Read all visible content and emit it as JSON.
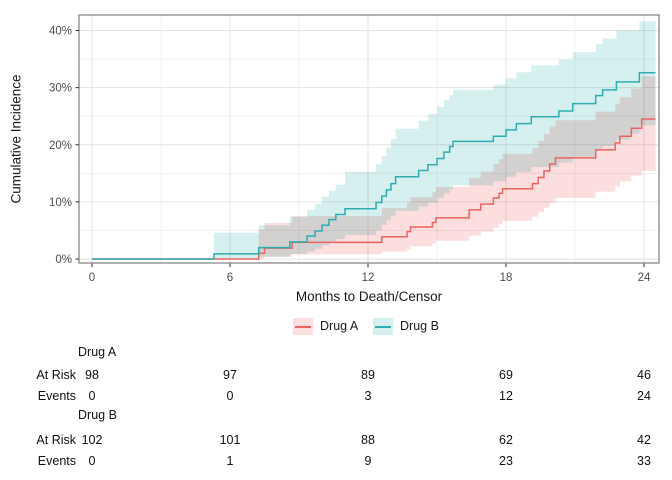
{
  "chart_data": {
    "type": "line",
    "subtype": "step-cumulative-incidence-with-confidence-bands",
    "title": "",
    "xlabel": "Months to Death/Censor",
    "ylabel": "Cumulative Incidence",
    "xlim": [
      -0.6,
      24.7
    ],
    "ylim": [
      -0.7,
      42.7
    ],
    "x_ticks": [
      0,
      6,
      12,
      18,
      24
    ],
    "x_tick_labels": [
      "0",
      "6",
      "12",
      "18",
      "24"
    ],
    "x_minor_ticks": [
      3,
      9,
      15,
      21
    ],
    "y_ticks": [
      0,
      10,
      20,
      30,
      40
    ],
    "y_tick_labels": [
      "0%",
      "10%",
      "20%",
      "30%",
      "40%"
    ],
    "y_minor_ticks": [
      5,
      15,
      25,
      35
    ],
    "grid": true,
    "legend_position": "bottom",
    "end_month": 24.5,
    "panel_border_color": "#7f7f7f",
    "grid_major_color": "#e3e3e3",
    "grid_minor_color": "#f1f1f1",
    "tick_text_color": "#4d4d4d",
    "series": [
      {
        "name": "Drug A",
        "color": "#EB6462",
        "band_color": "#FBDEDD",
        "steps_format": [
          "month",
          "cum_incidence_pct",
          "ci_lower_pct",
          "ci_upper_pct"
        ],
        "steps": [
          [
            0,
            0,
            0,
            0
          ],
          [
            7.25,
            1.0,
            0.1,
            5.2
          ],
          [
            7.5,
            1.9,
            0.4,
            6.3
          ],
          [
            8.7,
            2.9,
            0.8,
            7.5
          ],
          [
            12.6,
            3.9,
            1.3,
            8.9
          ],
          [
            13.7,
            4.8,
            1.7,
            9.9
          ],
          [
            13.85,
            5.6,
            2.2,
            10.8
          ],
          [
            14.8,
            6.4,
            2.7,
            11.7
          ],
          [
            14.95,
            7.2,
            3.2,
            12.6
          ],
          [
            16.4,
            8.6,
            4.1,
            14.2
          ],
          [
            16.9,
            9.6,
            4.8,
            15.3
          ],
          [
            17.45,
            10.7,
            5.5,
            16.6
          ],
          [
            17.7,
            11.5,
            6.1,
            17.5
          ],
          [
            17.85,
            12.3,
            6.7,
            18.4
          ],
          [
            19.15,
            13.2,
            7.4,
            19.4
          ],
          [
            19.4,
            14.3,
            8.2,
            20.7
          ],
          [
            19.65,
            15.4,
            9.0,
            21.9
          ],
          [
            19.9,
            16.6,
            9.9,
            23.2
          ],
          [
            20.15,
            17.7,
            10.7,
            24.3
          ],
          [
            21.9,
            19.1,
            11.8,
            25.8
          ],
          [
            22.75,
            20.3,
            12.7,
            27.1
          ],
          [
            22.95,
            21.5,
            13.6,
            28.3
          ],
          [
            23.45,
            22.9,
            14.6,
            29.8
          ],
          [
            23.9,
            24.5,
            15.4,
            32.0
          ]
        ]
      },
      {
        "name": "Drug B",
        "color": "#2DADB1",
        "band_color": "#D6F0F0",
        "steps_format": [
          "month",
          "cum_incidence_pct",
          "ci_lower_pct",
          "ci_upper_pct"
        ],
        "steps": [
          [
            0,
            0,
            0,
            0
          ],
          [
            5.3,
            0.9,
            0.1,
            4.6
          ],
          [
            7.25,
            2.0,
            0.4,
            5.9
          ],
          [
            8.6,
            3.0,
            0.9,
            7.4
          ],
          [
            9.35,
            4.0,
            1.3,
            8.6
          ],
          [
            9.7,
            4.9,
            1.8,
            9.7
          ],
          [
            10.0,
            5.9,
            2.4,
            10.9
          ],
          [
            10.3,
            6.9,
            3.0,
            12.0
          ],
          [
            10.6,
            7.8,
            3.5,
            13.0
          ],
          [
            11.0,
            8.8,
            4.2,
            15.3
          ],
          [
            12.35,
            9.9,
            5.0,
            16.6
          ],
          [
            12.6,
            11.0,
            6.0,
            18.0
          ],
          [
            12.8,
            12.1,
            6.8,
            19.5
          ],
          [
            13.0,
            13.2,
            7.6,
            21.0
          ],
          [
            13.2,
            14.4,
            8.4,
            22.8
          ],
          [
            14.2,
            15.5,
            9.2,
            24.2
          ],
          [
            14.6,
            16.5,
            9.9,
            25.4
          ],
          [
            15.0,
            17.6,
            10.7,
            26.6
          ],
          [
            15.3,
            18.7,
            11.5,
            27.8
          ],
          [
            15.55,
            19.7,
            12.2,
            28.7
          ],
          [
            15.7,
            20.6,
            12.9,
            29.6
          ],
          [
            17.45,
            21.5,
            13.6,
            30.5
          ],
          [
            18.0,
            22.6,
            14.4,
            31.6
          ],
          [
            18.45,
            23.7,
            15.2,
            32.7
          ],
          [
            19.1,
            24.9,
            16.1,
            33.9
          ],
          [
            20.3,
            25.9,
            16.9,
            34.9
          ],
          [
            20.9,
            27.2,
            17.9,
            36.2
          ],
          [
            21.9,
            28.6,
            19.0,
            37.6
          ],
          [
            22.2,
            29.6,
            19.8,
            38.6
          ],
          [
            22.8,
            31.0,
            20.9,
            40.0
          ],
          [
            23.4,
            31.0,
            22.0,
            40.0
          ],
          [
            23.8,
            32.6,
            23.4,
            41.6
          ]
        ]
      }
    ]
  },
  "risk_table": {
    "columns_months": [
      0,
      6,
      12,
      18,
      24
    ],
    "row_labels": {
      "at_risk": "At Risk",
      "events": "Events"
    },
    "groups": [
      {
        "name": "Drug A",
        "at_risk": [
          98,
          97,
          89,
          69,
          46
        ],
        "events": [
          0,
          0,
          3,
          12,
          24
        ]
      },
      {
        "name": "Drug B",
        "at_risk": [
          102,
          101,
          88,
          62,
          42
        ],
        "events": [
          0,
          1,
          9,
          23,
          33
        ]
      }
    ]
  }
}
